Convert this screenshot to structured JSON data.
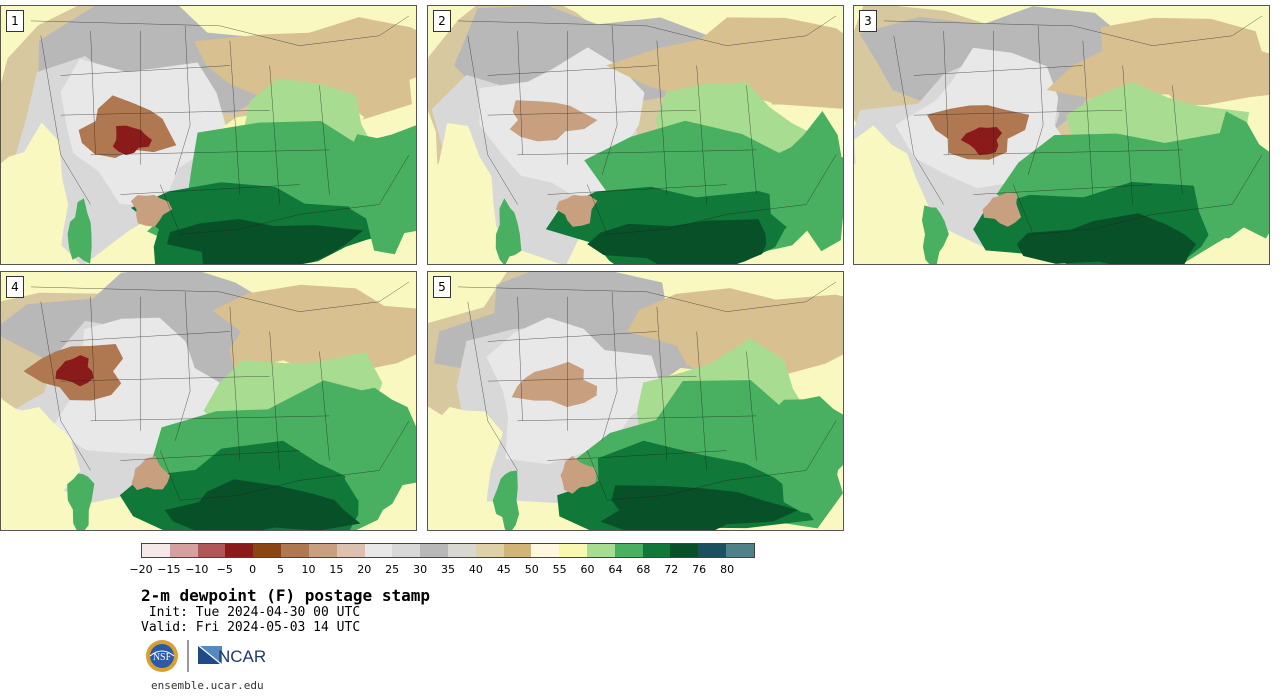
{
  "panels": [
    {
      "number": "1"
    },
    {
      "number": "2"
    },
    {
      "number": "3"
    },
    {
      "number": "4"
    },
    {
      "number": "5"
    }
  ],
  "colorbar": {
    "colors": [
      "#f4e8e8",
      "#d4a0a0",
      "#b05858",
      "#8b1a1a",
      "#8b4513",
      "#b07850",
      "#c8a080",
      "#dcc0b0",
      "#e8e8e8",
      "#d8d8d8",
      "#b8b8b8",
      "#d8d8d0",
      "#e0d0a8",
      "#d0b478",
      "#fff8e0",
      "#f8f8b0",
      "#a8dc90",
      "#48b060",
      "#107838",
      "#085028",
      "#1a5060",
      "#508088"
    ],
    "tick_labels": [
      "−20",
      "−15",
      "−10",
      "−5",
      "0",
      "5",
      "10",
      "15",
      "20",
      "25",
      "30",
      "35",
      "40",
      "45",
      "50",
      "55",
      "60",
      "64",
      "68",
      "72",
      "76",
      "80"
    ]
  },
  "title": "2-m dewpoint (F) postage stamp",
  "init": " Init: Tue 2024-04-30 00 UTC",
  "valid": "Valid: Fri 2024-05-03 14 UTC",
  "logos": {
    "nsf": "NSF",
    "ncar": "NCAR"
  },
  "url": "ensemble.ucar.edu"
}
